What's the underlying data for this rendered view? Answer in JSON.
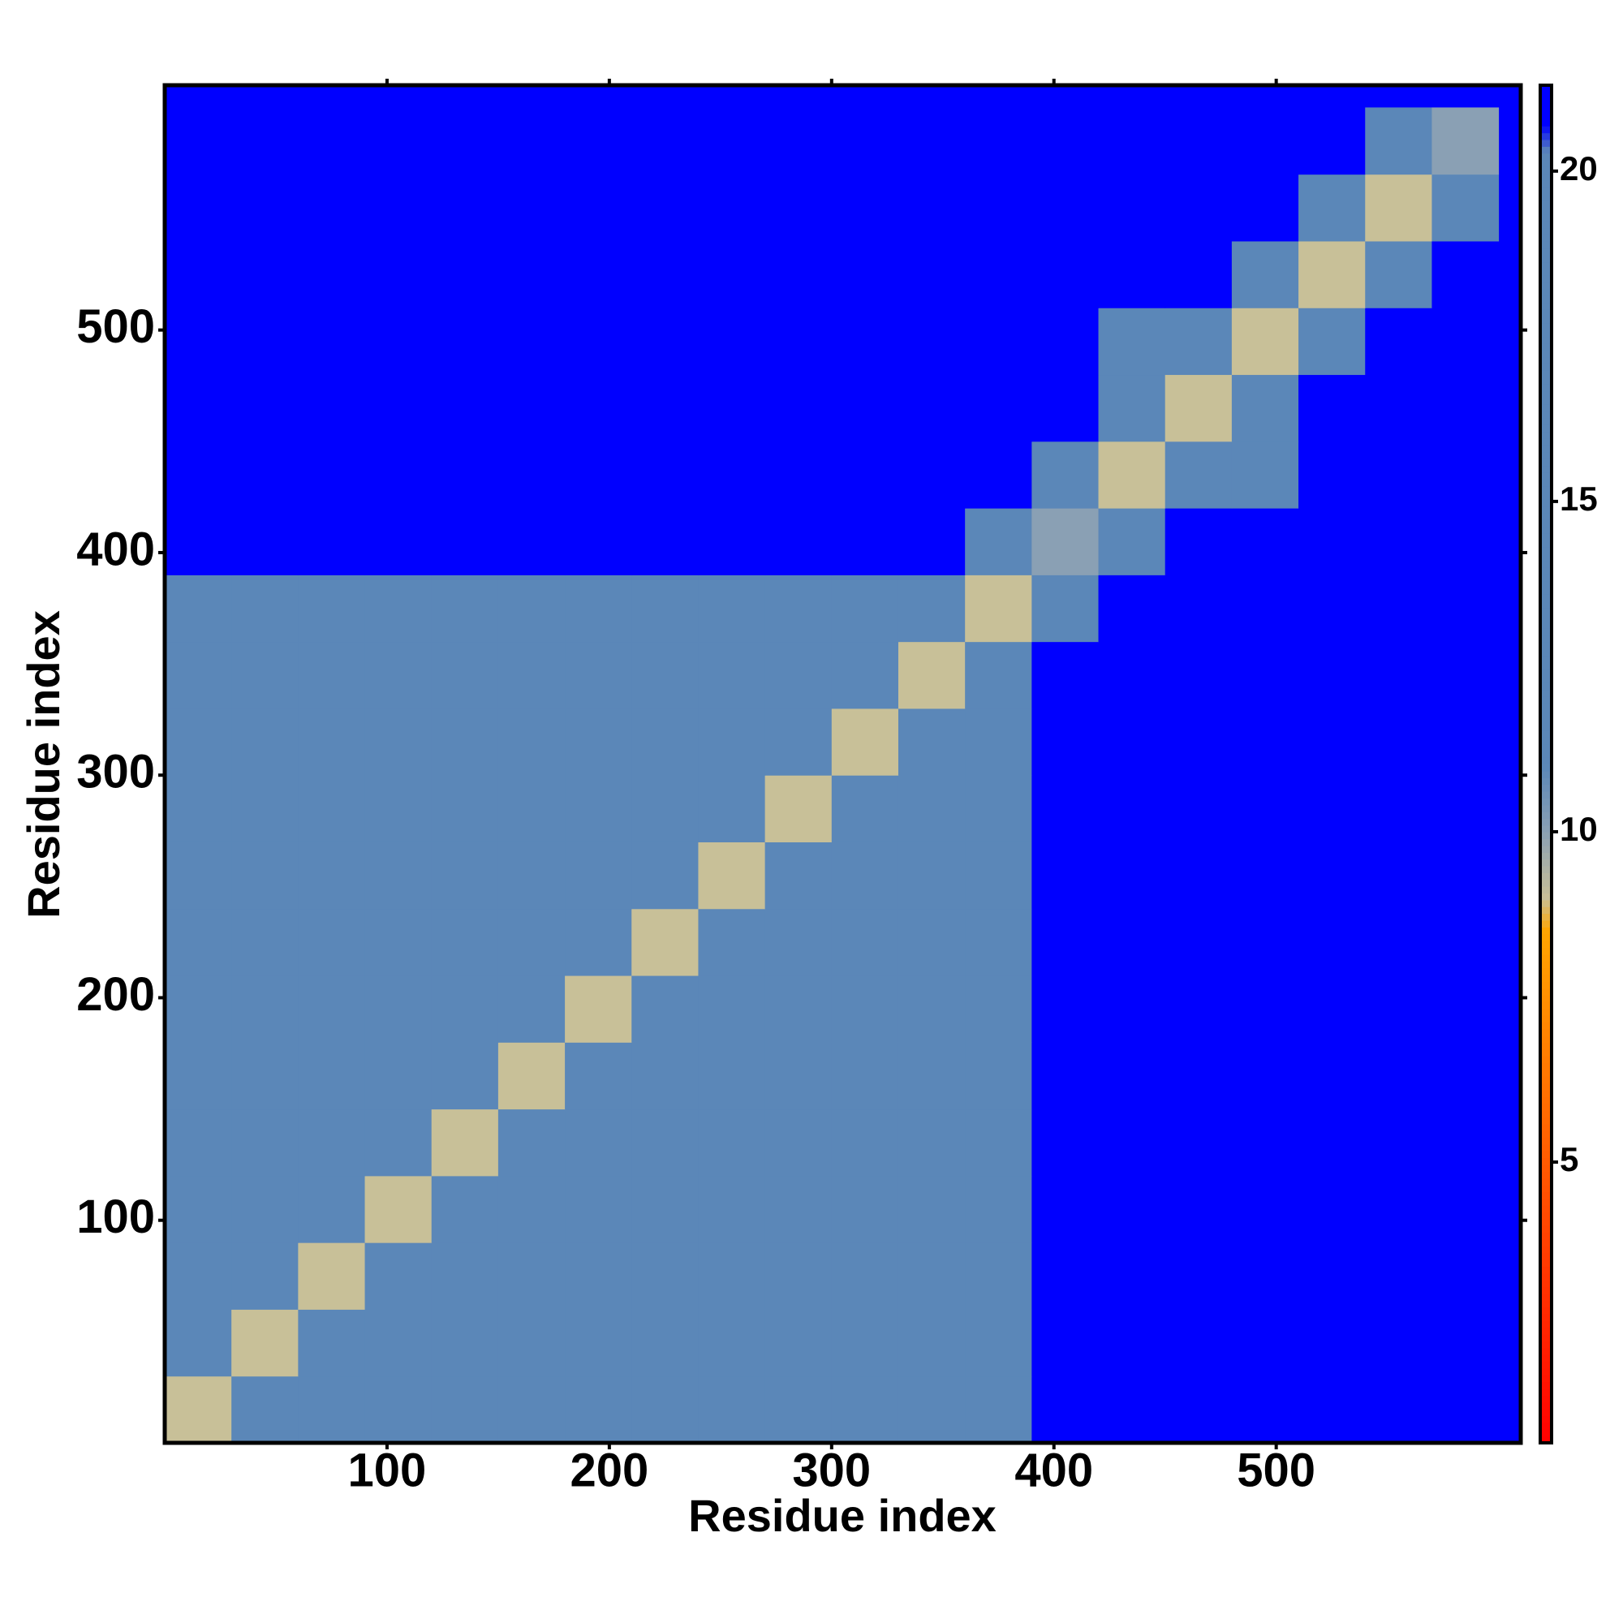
{
  "chart_data": {
    "type": "heatmap",
    "xlabel": "Residue index",
    "ylabel": "Residue index",
    "xlim": [
      0,
      610
    ],
    "ylim": [
      0,
      610
    ],
    "xticks": [
      100,
      200,
      300,
      400,
      500
    ],
    "yticks": [
      100,
      200,
      300,
      400,
      500
    ],
    "xbins": [
      0,
      30,
      60,
      90,
      120,
      150,
      180,
      210,
      240,
      270,
      300,
      330,
      360,
      390,
      420,
      450,
      480,
      510,
      540,
      570,
      600
    ],
    "ybins": [
      0,
      30,
      60,
      90,
      120,
      150,
      180,
      210,
      240,
      270,
      300,
      330,
      360,
      390,
      420,
      450,
      480,
      510,
      540,
      570,
      600
    ],
    "values": [
      [
        9,
        14,
        14,
        14,
        17,
        18,
        18,
        18,
        18,
        18,
        18,
        18,
        18,
        21,
        21,
        21,
        21,
        21,
        21,
        21
      ],
      [
        14,
        9,
        14,
        14,
        17,
        18,
        18,
        18,
        18,
        18,
        18,
        18,
        18,
        21,
        21,
        21,
        21,
        21,
        21,
        21
      ],
      [
        14,
        14,
        9,
        14,
        17,
        18,
        18,
        18,
        18,
        18,
        18,
        18,
        18,
        21,
        21,
        21,
        21,
        21,
        21,
        21
      ],
      [
        14,
        14,
        14,
        9,
        14,
        18,
        18,
        18,
        18,
        18,
        18,
        18,
        18,
        21,
        21,
        21,
        21,
        21,
        21,
        21
      ],
      [
        17,
        17,
        17,
        14,
        9,
        15,
        19,
        19,
        19,
        19,
        19,
        19,
        19,
        21,
        21,
        21,
        21,
        21,
        21,
        21
      ],
      [
        18,
        18,
        18,
        18,
        15,
        9,
        14,
        14,
        14,
        14,
        14,
        14,
        14,
        21,
        21,
        21,
        21,
        21,
        21,
        21
      ],
      [
        18,
        18,
        18,
        18,
        19,
        14,
        9,
        14,
        14,
        14,
        14,
        14,
        14,
        21,
        21,
        21,
        21,
        21,
        21,
        21
      ],
      [
        18,
        18,
        18,
        18,
        19,
        14,
        14,
        9,
        14,
        14,
        14,
        14,
        14,
        21,
        21,
        21,
        21,
        21,
        21,
        21
      ],
      [
        18,
        18,
        18,
        18,
        19,
        14,
        14,
        14,
        9,
        14,
        14,
        14,
        14,
        21,
        21,
        21,
        21,
        21,
        21,
        21
      ],
      [
        18,
        18,
        18,
        18,
        19,
        14,
        14,
        14,
        14,
        9,
        14,
        14,
        14,
        21,
        21,
        21,
        21,
        21,
        21,
        21
      ],
      [
        18,
        18,
        18,
        18,
        19,
        14,
        14,
        14,
        14,
        14,
        9,
        14,
        14,
        21,
        21,
        21,
        21,
        21,
        21,
        21
      ],
      [
        18,
        18,
        18,
        18,
        19,
        14,
        14,
        14,
        14,
        14,
        14,
        9,
        14,
        21,
        21,
        21,
        21,
        21,
        21,
        21
      ],
      [
        18,
        18,
        18,
        18,
        19,
        14,
        14,
        14,
        14,
        14,
        14,
        14,
        9,
        15,
        21,
        21,
        21,
        21,
        21,
        21
      ],
      [
        21,
        21,
        21,
        21,
        21,
        21,
        21,
        21,
        21,
        21,
        21,
        21,
        15,
        10,
        15,
        21,
        21,
        21,
        21,
        21
      ],
      [
        21,
        21,
        21,
        21,
        21,
        21,
        21,
        21,
        21,
        21,
        21,
        21,
        21,
        15,
        9,
        14,
        18,
        21,
        21,
        21
      ],
      [
        21,
        21,
        21,
        21,
        21,
        21,
        21,
        21,
        21,
        21,
        21,
        21,
        21,
        21,
        14,
        9,
        15,
        21,
        21,
        21
      ],
      [
        21,
        21,
        21,
        21,
        21,
        21,
        21,
        21,
        21,
        21,
        21,
        21,
        21,
        21,
        18,
        15,
        9,
        16,
        21,
        21
      ],
      [
        21,
        21,
        21,
        21,
        21,
        21,
        21,
        21,
        21,
        21,
        21,
        21,
        21,
        21,
        21,
        21,
        16,
        9,
        15,
        21
      ],
      [
        21,
        21,
        21,
        21,
        21,
        21,
        21,
        21,
        21,
        21,
        21,
        21,
        21,
        21,
        21,
        21,
        21,
        15,
        9,
        16
      ],
      [
        21,
        21,
        21,
        21,
        21,
        21,
        21,
        21,
        21,
        21,
        21,
        21,
        21,
        21,
        21,
        21,
        21,
        21,
        16,
        10
      ]
    ],
    "clim": [
      0.75,
      21.3
    ],
    "cticks": [
      5,
      10,
      15,
      20
    ],
    "colorscale": [
      [
        0.75,
        "#ff0000"
      ],
      [
        5,
        "#ff5a00"
      ],
      [
        8.5,
        "#ffa500"
      ],
      [
        9,
        "#c8c098"
      ],
      [
        10,
        "#8aa0b4"
      ],
      [
        11,
        "#5b87b8"
      ],
      [
        20.3,
        "#5b87b8"
      ],
      [
        20.7,
        "#0000ff"
      ],
      [
        21.3,
        "#0000ff"
      ]
    ],
    "background": "#0000ff"
  }
}
